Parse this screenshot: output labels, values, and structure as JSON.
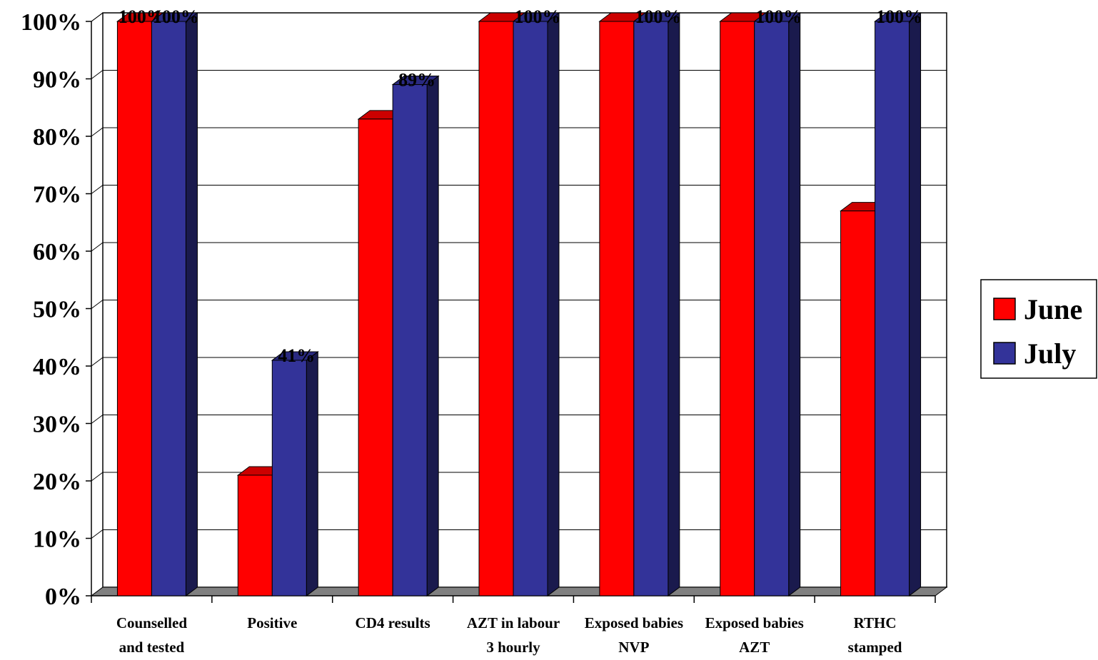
{
  "chart_data": {
    "type": "bar",
    "title": "",
    "xlabel": "",
    "ylabel": "",
    "ylim": [
      0,
      100
    ],
    "y_tick_step": 10,
    "y_tick_format": "percent",
    "grid": true,
    "legend_position": "right",
    "categories": [
      [
        "Counselled",
        "and tested"
      ],
      [
        "Positive"
      ],
      [
        "CD4 results"
      ],
      [
        "AZT in labour",
        "3 hourly"
      ],
      [
        "Exposed babies",
        "NVP"
      ],
      [
        "Exposed babies",
        "AZT"
      ],
      [
        "RTHC",
        "stamped"
      ]
    ],
    "series": [
      {
        "name": "June",
        "color": "#FF0000",
        "top_color": "#CC0000",
        "side_color": "#800000",
        "values": [
          100,
          21,
          83,
          100,
          100,
          100,
          67
        ],
        "data_labels": [
          "100%",
          "",
          "",
          "",
          "",
          "",
          ""
        ]
      },
      {
        "name": "July",
        "color": "#333399",
        "top_color": "#2A2A80",
        "side_color": "#1A1A4D",
        "values": [
          100,
          41,
          89,
          100,
          100,
          100,
          100
        ],
        "data_labels": [
          "100%",
          "41%",
          "89%",
          "100%",
          "100%",
          "100%",
          "100%"
        ]
      }
    ]
  }
}
